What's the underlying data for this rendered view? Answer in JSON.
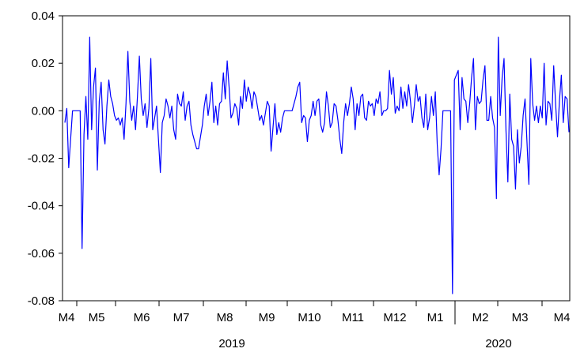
{
  "chart_data": {
    "type": "line",
    "title": "",
    "xlabel": "",
    "ylabel": "",
    "ylim": [
      -0.08,
      0.04
    ],
    "y_ticks": [
      "0.04",
      "0.02",
      "0.00",
      "-0.02",
      "-0.04",
      "-0.06",
      "-0.08"
    ],
    "y_tick_values": [
      0.04,
      0.02,
      0.0,
      -0.02,
      -0.04,
      -0.06,
      -0.08
    ],
    "x_tick_labels": [
      "M4",
      "M5",
      "M6",
      "M7",
      "M8",
      "M9",
      "M10",
      "M11",
      "M12",
      "M1",
      "M2",
      "M3",
      "M4"
    ],
    "year_labels": [
      "2019",
      "2020"
    ],
    "grid": false,
    "line_color": "#0000ff",
    "series": [
      {
        "values": [
          -0.005,
          0.001,
          -0.024,
          -0.012,
          0.0,
          0.0,
          0.0,
          0.0,
          0.0,
          -0.058,
          -0.01,
          0.006,
          -0.012,
          0.031,
          -0.008,
          0.01,
          0.018,
          -0.025,
          0.004,
          0.012,
          -0.008,
          -0.014,
          0.002,
          0.013,
          0.006,
          0.003,
          -0.002,
          -0.004,
          -0.003,
          -0.006,
          -0.003,
          -0.012,
          0.003,
          0.025,
          0.004,
          -0.004,
          0.002,
          -0.008,
          0.006,
          0.023,
          0.005,
          -0.002,
          0.003,
          -0.007,
          0.001,
          0.022,
          -0.008,
          -0.003,
          0.002,
          -0.012,
          -0.026,
          -0.005,
          -0.002,
          0.005,
          0.002,
          -0.003,
          0.002,
          -0.008,
          -0.012,
          0.007,
          0.003,
          0.002,
          0.008,
          -0.004,
          0.002,
          0.004,
          -0.006,
          -0.01,
          -0.013,
          -0.016,
          -0.016,
          -0.011,
          -0.006,
          0.002,
          0.007,
          -0.002,
          0.004,
          0.012,
          -0.005,
          0.002,
          -0.006,
          0.003,
          0.004,
          0.016,
          0.005,
          0.021,
          0.01,
          -0.003,
          -0.001,
          0.003,
          0.001,
          -0.006,
          0.006,
          0.001,
          0.013,
          0.004,
          0.01,
          0.007,
          0.001,
          0.008,
          0.006,
          0.001,
          -0.004,
          -0.002,
          -0.006,
          -0.001,
          0.004,
          0.002,
          -0.017,
          -0.007,
          0.003,
          -0.01,
          -0.005,
          -0.009,
          -0.003,
          0.0,
          0.0,
          0.0,
          0.0,
          0.0,
          0.003,
          0.006,
          0.01,
          0.012,
          -0.005,
          -0.002,
          -0.003,
          -0.013,
          -0.004,
          -0.002,
          0.004,
          -0.002,
          0.004,
          0.005,
          -0.006,
          -0.009,
          -0.005,
          0.008,
          0.002,
          -0.007,
          -0.005,
          0.003,
          0.002,
          -0.004,
          -0.012,
          -0.018,
          -0.005,
          0.003,
          -0.002,
          0.003,
          0.01,
          0.005,
          -0.008,
          0.003,
          -0.002,
          0.006,
          0.007,
          -0.003,
          -0.004,
          0.004,
          0.002,
          0.003,
          -0.002,
          0.005,
          0.003,
          0.008,
          -0.002,
          0.0,
          0.0,
          0.001,
          0.017,
          0.007,
          0.014,
          -0.001,
          0.002,
          0.0,
          0.01,
          0.001,
          0.008,
          0.002,
          0.011,
          0.004,
          -0.005,
          0.002,
          0.011,
          0.004,
          0.006,
          -0.003,
          -0.007,
          0.007,
          -0.008,
          -0.003,
          0.006,
          -0.002,
          0.008,
          -0.014,
          -0.027,
          -0.016,
          0.0,
          0.0,
          0.0,
          0.0,
          0.0,
          -0.077,
          0.013,
          0.015,
          0.017,
          -0.008,
          0.014,
          0.005,
          0.004,
          -0.005,
          0.003,
          0.014,
          0.022,
          -0.008,
          0.006,
          0.003,
          0.004,
          0.013,
          0.019,
          -0.004,
          -0.004,
          0.006,
          -0.003,
          -0.007,
          -0.037,
          0.031,
          -0.002,
          0.014,
          0.022,
          -0.008,
          -0.03,
          0.007,
          -0.012,
          -0.015,
          -0.033,
          -0.008,
          -0.022,
          -0.015,
          -0.002,
          0.005,
          -0.013,
          -0.031,
          0.022,
          0.003,
          -0.004,
          0.002,
          -0.005,
          0.002,
          -0.003,
          0.02,
          -0.006,
          0.004,
          0.003,
          -0.004,
          0.019,
          0.003,
          -0.011,
          0.004,
          0.015,
          -0.005,
          0.006,
          0.005,
          -0.009
        ]
      }
    ]
  }
}
